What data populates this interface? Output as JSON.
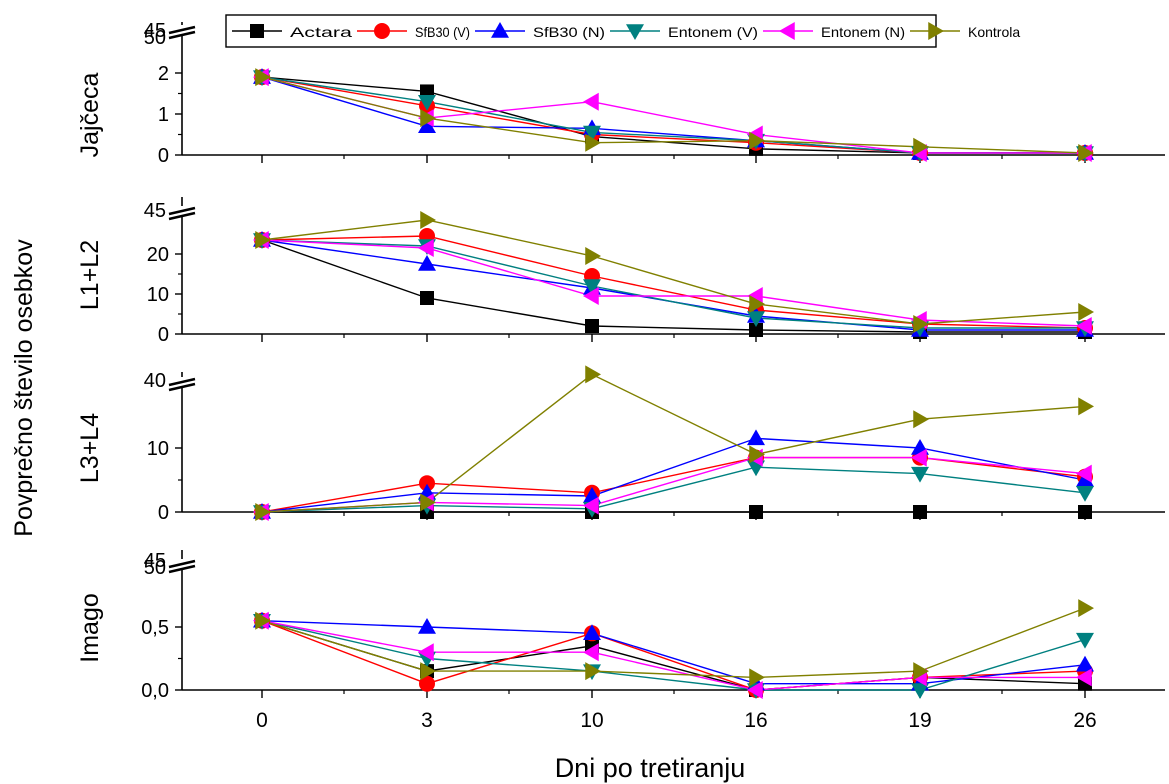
{
  "chart_data": {
    "type": "line",
    "x_categories": [
      "0",
      "3",
      "10",
      "16",
      "19",
      "26"
    ],
    "xlabel": "Dni po tretiranju",
    "ylabel": "Povprečno število osebkov",
    "legend": {
      "placement": "top",
      "entries": [
        "Actara",
        "SfB30 (V)",
        "SfB30 (N)",
        "Entonem (V)",
        "Entonem (N)",
        "Kontrola"
      ]
    },
    "series_style": [
      {
        "name": "Actara",
        "color": "#000000",
        "marker": "square"
      },
      {
        "name": "SfB30 (V)",
        "color": "#ff0000",
        "marker": "circle"
      },
      {
        "name": "SfB30 (N)",
        "color": "#0000ff",
        "marker": "triangle-up"
      },
      {
        "name": "Entonem (V)",
        "color": "#008080",
        "marker": "triangle-down"
      },
      {
        "name": "Entonem (N)",
        "color": "#ff00ff",
        "marker": "triangle-left"
      },
      {
        "name": "Kontrola",
        "color": "#808000",
        "marker": "triangle-right"
      }
    ],
    "panels": [
      {
        "ylabel": "Jajčeca",
        "yticks": [
          "0",
          "1",
          "2"
        ],
        "ylim": [
          0,
          2.6
        ],
        "axis_break": true,
        "break_labels": [
          "45",
          "50"
        ],
        "series": [
          {
            "name": "Actara",
            "values": [
              1.9,
              1.55,
              0.45,
              0.15,
              0.05,
              0.05
            ]
          },
          {
            "name": "SfB30 (V)",
            "values": [
              1.9,
              1.2,
              0.5,
              0.3,
              0.05,
              0.05
            ]
          },
          {
            "name": "SfB30 (N)",
            "values": [
              1.9,
              0.7,
              0.65,
              0.35,
              0.05,
              0.05
            ]
          },
          {
            "name": "Entonem (V)",
            "values": [
              1.9,
              1.3,
              0.55,
              0.35,
              0.05,
              0.05
            ]
          },
          {
            "name": "Entonem (N)",
            "values": [
              1.9,
              0.9,
              1.3,
              0.5,
              0.05,
              0.05
            ]
          },
          {
            "name": "Kontrola",
            "values": [
              1.9,
              0.9,
              0.3,
              0.35,
              0.2,
              0.05
            ]
          }
        ]
      },
      {
        "ylabel": "L1+L2",
        "yticks": [
          "0",
          "10",
          "20"
        ],
        "ylim": [
          0,
          30
        ],
        "axis_break": true,
        "break_labels": [
          "45"
        ],
        "series": [
          {
            "name": "Actara",
            "values": [
              23.5,
              9,
              2,
              1,
              0.5,
              0.5
            ]
          },
          {
            "name": "SfB30 (V)",
            "values": [
              23.5,
              24.5,
              14.5,
              6,
              2.5,
              1.5
            ]
          },
          {
            "name": "SfB30 (N)",
            "values": [
              23.5,
              17.5,
              11.5,
              4.5,
              1,
              1
            ]
          },
          {
            "name": "Entonem (V)",
            "values": [
              23.5,
              22,
              12,
              4,
              1.5,
              1.5
            ]
          },
          {
            "name": "Entonem (N)",
            "values": [
              23.5,
              21.5,
              9.5,
              9.5,
              3.5,
              2
            ]
          },
          {
            "name": "Kontrola",
            "values": [
              23.5,
              28.5,
              19.5,
              7.5,
              2.5,
              5.5
            ]
          }
        ]
      },
      {
        "ylabel": "L3+L4",
        "yticks": [
          "0",
          "10"
        ],
        "ylim": [
          0,
          25
        ],
        "axis_break": true,
        "break_labels": [
          "40"
        ],
        "series": [
          {
            "name": "Actara",
            "values": [
              0,
              0,
              0,
              0,
              0,
              0
            ]
          },
          {
            "name": "SfB30 (V)",
            "values": [
              0,
              4.5,
              3,
              8.5,
              8.5,
              5.5
            ]
          },
          {
            "name": "SfB30 (N)",
            "values": [
              0,
              3,
              2.5,
              11.5,
              10,
              5
            ]
          },
          {
            "name": "Entonem (V)",
            "values": [
              0,
              1,
              0.5,
              7,
              6,
              3
            ]
          },
          {
            "name": "Entonem (N)",
            "values": [
              0,
              1.5,
              1,
              8.5,
              8.5,
              6
            ]
          },
          {
            "name": "Kontrola",
            "values": [
              0,
              1.5,
              21.5,
              9,
              14.5,
              16.5
            ]
          }
        ]
      },
      {
        "ylabel": "Imago",
        "yticks": [
          "0,0",
          "0,5"
        ],
        "ylim": [
          0,
          0.93
        ],
        "axis_break": true,
        "break_labels": [
          "45",
          "50"
        ],
        "series": [
          {
            "name": "Actara",
            "values": [
              0.55,
              0.15,
              0.35,
              0.0,
              0.1,
              0.05
            ]
          },
          {
            "name": "SfB30 (V)",
            "values": [
              0.55,
              0.05,
              0.45,
              0.0,
              0.1,
              0.15
            ]
          },
          {
            "name": "SfB30 (N)",
            "values": [
              0.55,
              0.5,
              0.45,
              0.05,
              0.05,
              0.2
            ]
          },
          {
            "name": "Entonem (V)",
            "values": [
              0.55,
              0.25,
              0.15,
              0.0,
              0.0,
              0.4
            ]
          },
          {
            "name": "Entonem (N)",
            "values": [
              0.55,
              0.3,
              0.3,
              0.0,
              0.1,
              0.1
            ]
          },
          {
            "name": "Kontrola",
            "values": [
              0.55,
              0.15,
              0.15,
              0.1,
              0.15,
              0.65
            ]
          }
        ]
      }
    ]
  }
}
